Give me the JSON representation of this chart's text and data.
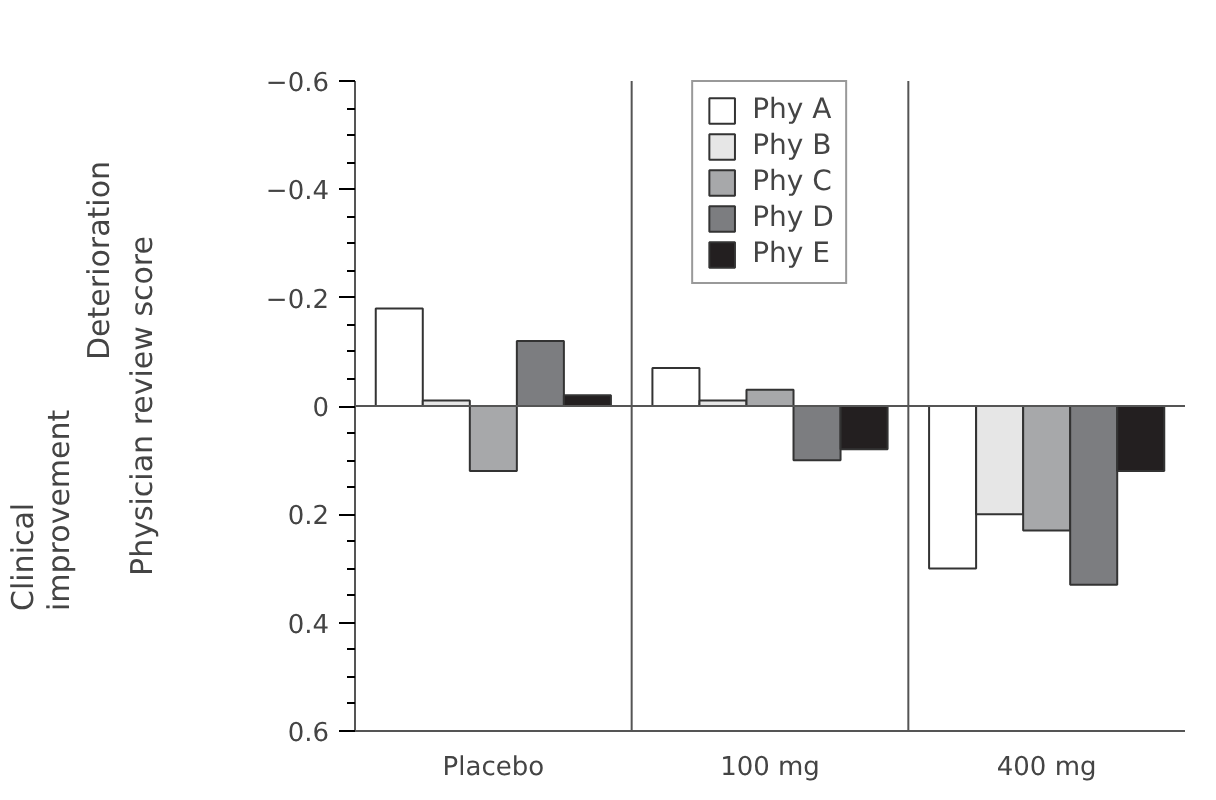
{
  "chart_data": {
    "type": "bar",
    "ylabel": "Physician review score",
    "categories": [
      "Placebo",
      "100 mg",
      "400 mg"
    ],
    "series": [
      {
        "name": "Phy A",
        "color": "#ffffff",
        "values": [
          -0.18,
          -0.07,
          0.3
        ]
      },
      {
        "name": "Phy B",
        "color": "#e6e6e6",
        "values": [
          -0.01,
          -0.01,
          0.2
        ]
      },
      {
        "name": "Phy C",
        "color": "#a7a8aa",
        "values": [
          0.12,
          -0.03,
          0.23
        ]
      },
      {
        "name": "Phy D",
        "color": "#7c7d80",
        "values": [
          -0.12,
          0.1,
          0.33
        ]
      },
      {
        "name": "Phy E",
        "color": "#231f20",
        "values": [
          -0.02,
          0.08,
          0.12
        ]
      }
    ],
    "ylim": [
      0.6,
      -0.6
    ],
    "yticks": [
      -0.6,
      -0.4,
      -0.2,
      0,
      0.2,
      0.4,
      0.6
    ],
    "annotations": [
      "Deterioration",
      "Clinical improvement"
    ],
    "ref_lines": [
      {
        "axis": "y",
        "value": 0
      }
    ],
    "legend": "top"
  }
}
